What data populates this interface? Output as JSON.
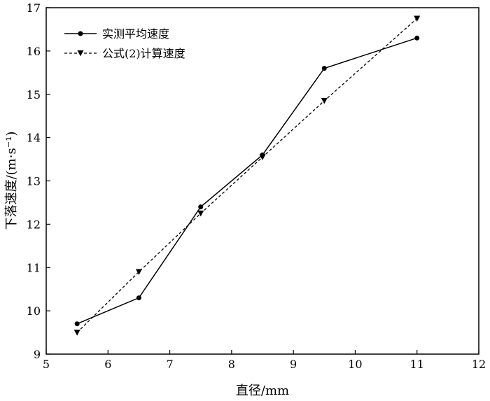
{
  "chart_data": {
    "type": "line",
    "xlabel": "直径/mm",
    "ylabel": "下落速度/(m·s⁻¹)",
    "xlim": [
      5,
      12
    ],
    "ylim": [
      9,
      17
    ],
    "x_ticks": [
      5,
      6,
      7,
      8,
      9,
      10,
      11,
      12
    ],
    "y_ticks": [
      9,
      10,
      11,
      12,
      13,
      14,
      15,
      16,
      17
    ],
    "grid": false,
    "legend_position": "top-left",
    "series": [
      {
        "name": "实测平均速度",
        "x": [
          5.5,
          6.5,
          7.5,
          8.5,
          9.5,
          11
        ],
        "y": [
          9.7,
          10.3,
          12.4,
          13.6,
          15.6,
          16.3
        ],
        "line_style": "solid",
        "marker": "circle",
        "color": "#000000"
      },
      {
        "name": "公式(2)计算速度",
        "x": [
          5.5,
          6.5,
          7.5,
          8.5,
          9.5,
          11
        ],
        "y": [
          9.5,
          10.9,
          12.25,
          13.55,
          14.85,
          16.75
        ],
        "line_style": "dashed",
        "marker": "triangle-down",
        "color": "#000000"
      }
    ]
  }
}
